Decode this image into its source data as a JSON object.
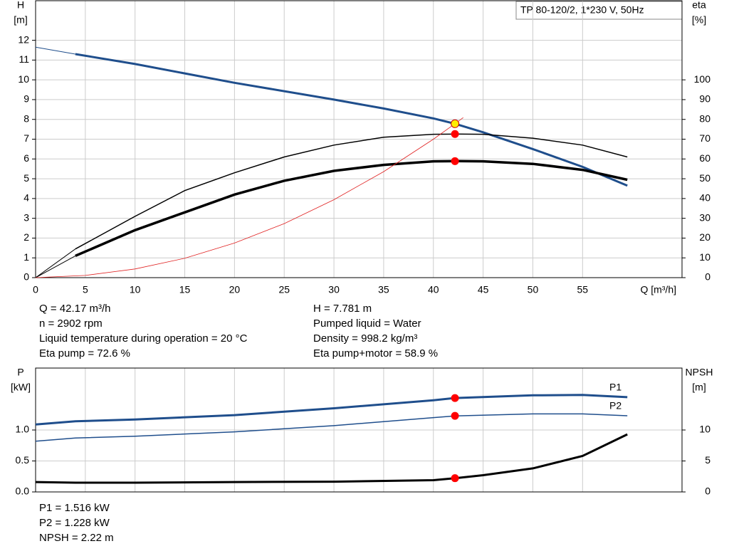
{
  "header_label": "TP 80-120/2, 1*230 V, 50Hz",
  "info_top_left": [
    "Q = 42.17 m³/h",
    "n = 2902 rpm",
    "Liquid temperature during operation = 20 °C",
    "Eta pump = 72.6 %"
  ],
  "info_top_right": [
    "H = 7.781 m",
    "Pumped liquid = Water",
    "Density = 998.2 kg/m³",
    "Eta pump+motor = 58.9 %"
  ],
  "info_bottom": [
    "P1 = 1.516 kW",
    "P2 = 1.228 kW",
    "NPSH = 2.22 m"
  ],
  "chart_data": [
    {
      "type": "line",
      "y_label": "H",
      "y_unit": "[m]",
      "y2_label": "eta",
      "y2_unit": "[%]",
      "x_label": "Q [m³/h]",
      "xlim": [
        0,
        65
      ],
      "xticks": [
        0,
        5,
        10,
        15,
        20,
        25,
        30,
        35,
        40,
        45,
        50,
        55
      ],
      "ylim": [
        0,
        14
      ],
      "yticks": [
        0,
        1,
        2,
        3,
        4,
        5,
        6,
        7,
        8,
        9,
        10,
        11,
        12
      ],
      "y2lim": [
        0,
        140
      ],
      "y2ticks": [
        0,
        10,
        20,
        30,
        40,
        50,
        60,
        70,
        80,
        90,
        100
      ],
      "grid": true,
      "series": [
        {
          "color": "#1f4e8c",
          "width": 1,
          "axis": "y",
          "x": [
            0,
            4
          ],
          "values": [
            11.65,
            11.3
          ]
        },
        {
          "color": "#1f4e8c",
          "width": 3,
          "axis": "y",
          "x": [
            4,
            10,
            20,
            30,
            35,
            40,
            42.17,
            45,
            50,
            55,
            59.5
          ],
          "values": [
            11.3,
            10.8,
            9.85,
            9.0,
            8.55,
            8.05,
            7.781,
            7.35,
            6.5,
            5.6,
            4.65
          ]
        },
        {
          "color": "#000000",
          "width": 1,
          "axis": "y2",
          "x": [
            0,
            4
          ],
          "values": [
            0,
            14.5
          ]
        },
        {
          "color": "#000000",
          "width": 1.5,
          "axis": "y2",
          "x": [
            4,
            10,
            15,
            20,
            25,
            30,
            35,
            40,
            42.17,
            45,
            50,
            55,
            59.5
          ],
          "values": [
            14.5,
            31,
            44,
            53,
            61,
            67,
            71,
            72.5,
            72.6,
            72.5,
            70.5,
            67,
            61
          ]
        },
        {
          "color": "#000000",
          "width": 1,
          "axis": "y2",
          "x": [
            0,
            4
          ],
          "values": [
            0,
            11
          ]
        },
        {
          "color": "#000000",
          "width": 3.5,
          "axis": "y2",
          "x": [
            4,
            10,
            15,
            20,
            25,
            30,
            35,
            40,
            42.17,
            45,
            50,
            55,
            59.5
          ],
          "values": [
            11,
            24,
            33,
            42,
            49,
            54,
            57,
            58.8,
            58.9,
            58.8,
            57.5,
            54.5,
            49.5
          ]
        },
        {
          "color": "#e02020",
          "width": 0.8,
          "axis": "y",
          "x": [
            0,
            5,
            10,
            15,
            20,
            25,
            30,
            35,
            40,
            42.17,
            43
          ],
          "values": [
            0,
            0.11,
            0.44,
            0.98,
            1.75,
            2.73,
            3.94,
            5.36,
            7.0,
            7.781,
            8.09
          ]
        }
      ],
      "markers": [
        {
          "color": "#ff0000",
          "axis": "y2",
          "x": 42.17,
          "value": 72.6
        },
        {
          "color": "#ff0000",
          "axis": "y2",
          "x": 42.17,
          "value": 58.9
        },
        {
          "color": "#ffee00",
          "axis": "y",
          "x": 42.17,
          "value": 7.781
        }
      ]
    },
    {
      "type": "line",
      "y_label": "P",
      "y_unit": "[kW]",
      "y2_label": "NPSH",
      "y2_unit": "[m]",
      "xlim": [
        0,
        65
      ],
      "xticks": [
        0,
        5,
        10,
        15,
        20,
        25,
        30,
        35,
        40,
        45,
        50,
        55
      ],
      "ylim": [
        0,
        2
      ],
      "yticks": [
        {
          "value": 0,
          "label": "0.0"
        },
        {
          "value": 0.5,
          "label": "0.5"
        },
        {
          "value": 1,
          "label": "1.0"
        }
      ],
      "y2lim": [
        0,
        20
      ],
      "y2ticks": [
        0,
        5,
        10
      ],
      "grid": true,
      "series": [
        {
          "name": "P1",
          "color": "#1f4e8c",
          "width": 3,
          "axis": "y",
          "x": [
            0,
            4,
            10,
            20,
            30,
            40,
            42.17,
            50,
            55,
            59.5
          ],
          "values": [
            1.09,
            1.14,
            1.17,
            1.24,
            1.35,
            1.48,
            1.516,
            1.56,
            1.565,
            1.53
          ]
        },
        {
          "name": "P2",
          "color": "#1f4e8c",
          "width": 1.5,
          "axis": "y",
          "x": [
            0,
            4,
            10,
            20,
            30,
            40,
            42.17,
            50,
            55,
            59.5
          ],
          "values": [
            0.82,
            0.87,
            0.9,
            0.97,
            1.07,
            1.2,
            1.228,
            1.26,
            1.26,
            1.23
          ]
        },
        {
          "color": "#000000",
          "width": 3,
          "axis": "y2",
          "x": [
            0,
            4,
            10,
            20,
            30,
            40,
            42.17,
            45,
            50,
            55,
            59.5
          ],
          "values": [
            1.6,
            1.5,
            1.5,
            1.6,
            1.65,
            1.9,
            2.22,
            2.7,
            3.8,
            5.8,
            9.3
          ]
        }
      ],
      "markers": [
        {
          "color": "#ff0000",
          "axis": "y",
          "x": 42.17,
          "value": 1.516
        },
        {
          "color": "#ff0000",
          "axis": "y",
          "x": 42.17,
          "value": 1.228
        },
        {
          "color": "#ff0000",
          "axis": "y2",
          "x": 42.17,
          "value": 2.22
        }
      ]
    }
  ]
}
